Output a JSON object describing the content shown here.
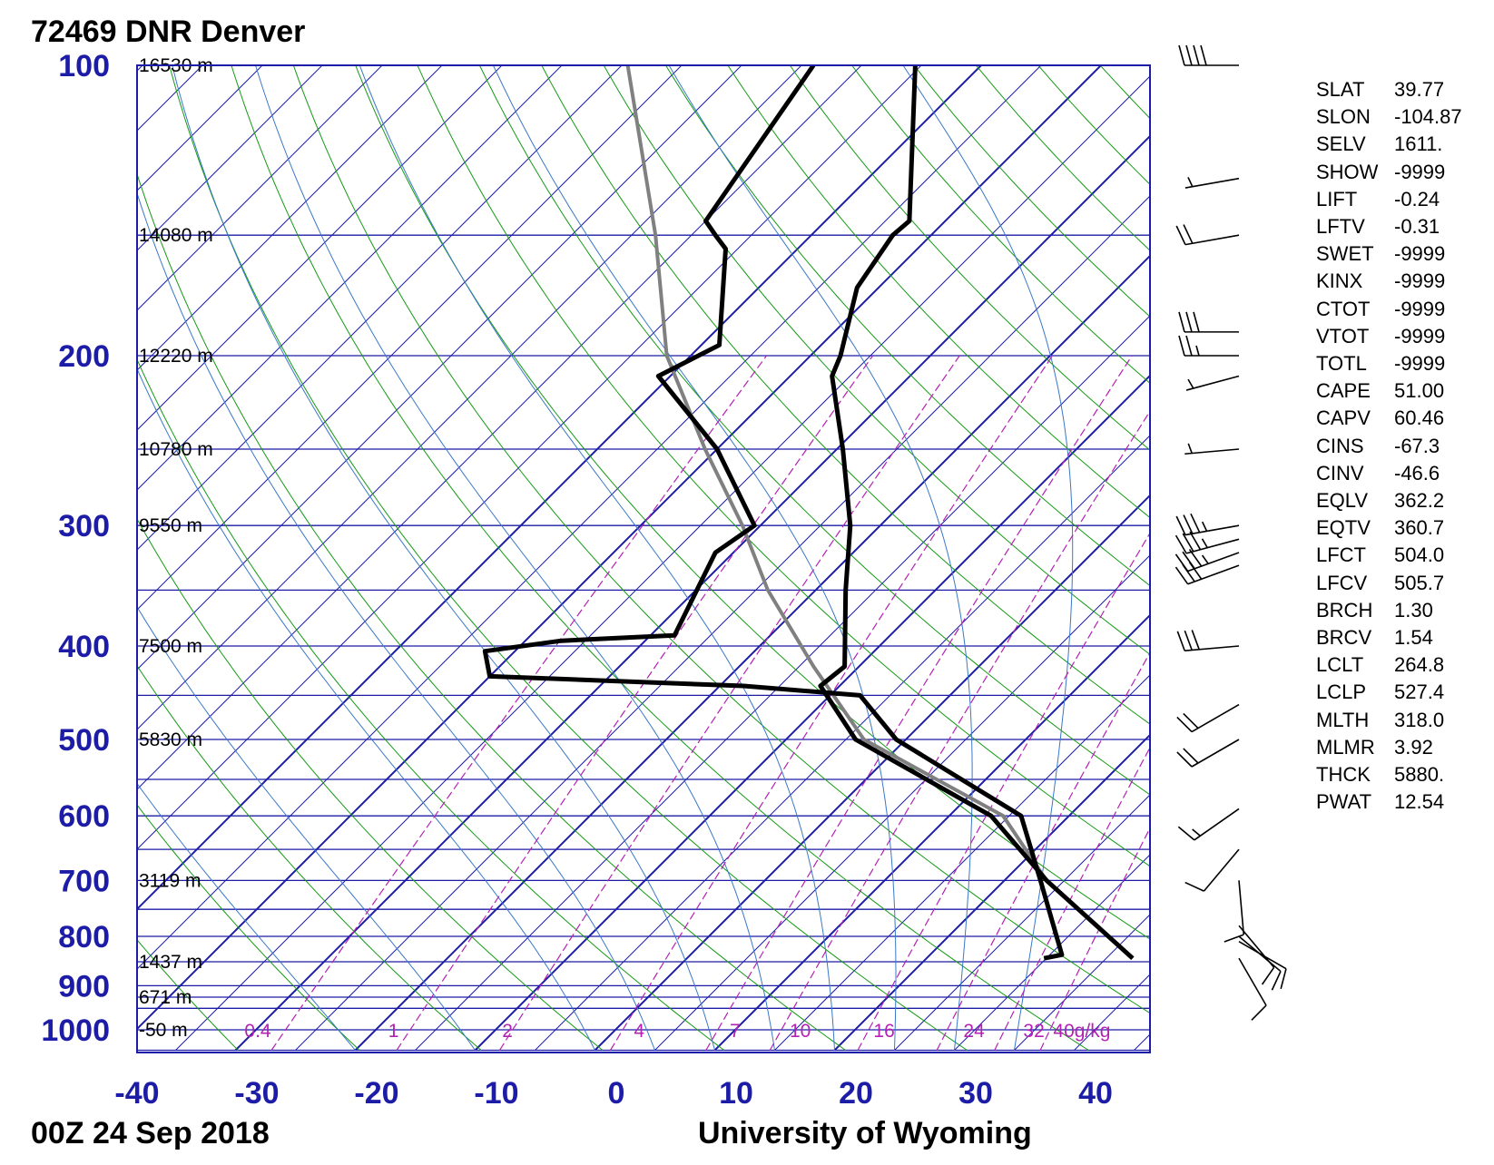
{
  "header": {
    "station_title": "72469 DNR Denver",
    "date_label": "00Z 24 Sep 2018",
    "source_label": "University of Wyoming"
  },
  "chart_data": {
    "type": "skew-t log-p",
    "x_ticks": [
      "-40",
      "-30",
      "-20",
      "-10",
      "0",
      "10",
      "20",
      "30",
      "40"
    ],
    "y_ticks": [
      "100",
      "200",
      "300",
      "400",
      "500",
      "600",
      "700",
      "800",
      "900",
      "1000"
    ],
    "xlim": [
      -40,
      45
    ],
    "ylim": [
      1050,
      100
    ],
    "isobar_heights": [
      {
        "p": 100,
        "label": "16530 m"
      },
      {
        "p": 150,
        "label": "14080 m"
      },
      {
        "p": 200,
        "label": "12220 m"
      },
      {
        "p": 250,
        "label": "10780 m"
      },
      {
        "p": 300,
        "label": "9550 m"
      },
      {
        "p": 400,
        "label": "7500 m"
      },
      {
        "p": 500,
        "label": "5830 m"
      },
      {
        "p": 700,
        "label": "3119 m"
      },
      {
        "p": 850,
        "label": "1437 m"
      },
      {
        "p": 925,
        "label": "671 m"
      },
      {
        "p": 1000,
        "label": "-50 m"
      }
    ],
    "mixing_ratio_labels": [
      {
        "value": "0.4",
        "temp_1000": -30.5
      },
      {
        "value": "1",
        "temp_1000": -18.5
      },
      {
        "value": "2",
        "temp_1000": -9
      },
      {
        "value": "4",
        "temp_1000": 2
      },
      {
        "value": "7",
        "temp_1000": 10
      },
      {
        "value": "10",
        "temp_1000": 15
      },
      {
        "value": "16",
        "temp_1000": 22
      },
      {
        "value": "24",
        "temp_1000": 29.5
      },
      {
        "value": "32",
        "temp_1000": 34.5
      },
      {
        "value": "40g/kg",
        "temp_1000": 37
      }
    ],
    "temperature": [
      {
        "p": 843,
        "t": 37.2
      },
      {
        "p": 700,
        "t": 23.5
      },
      {
        "p": 600,
        "t": 13.5
      },
      {
        "p": 500,
        "t": -4.2
      },
      {
        "p": 440,
        "t": -11.6
      },
      {
        "p": 420,
        "t": -11.2
      },
      {
        "p": 350,
        "t": -17.5
      },
      {
        "p": 300,
        "t": -22.5
      },
      {
        "p": 250,
        "t": -29.5
      },
      {
        "p": 210,
        "t": -36.5
      },
      {
        "p": 200,
        "t": -37.5
      },
      {
        "p": 170,
        "t": -41.8
      },
      {
        "p": 150,
        "t": -43.2
      },
      {
        "p": 145,
        "t": -43.0
      },
      {
        "p": 100,
        "t": -55.5
      }
    ],
    "dewpoint": [
      {
        "p": 843,
        "t": 29.8
      },
      {
        "p": 836,
        "t": 31.0
      },
      {
        "p": 700,
        "t": 23.0
      },
      {
        "p": 600,
        "t": 16.0
      },
      {
        "p": 500,
        "t": -0.8
      },
      {
        "p": 450,
        "t": -7.5
      },
      {
        "p": 440,
        "t": -18.0
      },
      {
        "p": 430,
        "t": -40.0
      },
      {
        "p": 405,
        "t": -42.5
      },
      {
        "p": 395,
        "t": -37.0
      },
      {
        "p": 390,
        "t": -28.0
      },
      {
        "p": 320,
        "t": -31.5
      },
      {
        "p": 300,
        "t": -30.5
      },
      {
        "p": 250,
        "t": -40.0
      },
      {
        "p": 210,
        "t": -51.0
      },
      {
        "p": 195,
        "t": -48.5
      },
      {
        "p": 155,
        "t": -56.0
      },
      {
        "p": 150,
        "t": -58.0
      },
      {
        "p": 145,
        "t": -60.0
      },
      {
        "p": 100,
        "t": -64.0
      }
    ],
    "parcel": [
      {
        "p": 843,
        "t": 37.2
      },
      {
        "p": 700,
        "t": 23.5
      },
      {
        "p": 600,
        "t": 14.5
      },
      {
        "p": 500,
        "t": -3.5
      },
      {
        "p": 420,
        "t": -13.8
      },
      {
        "p": 350,
        "t": -24.0
      },
      {
        "p": 300,
        "t": -31.5
      },
      {
        "p": 250,
        "t": -41.0
      },
      {
        "p": 200,
        "t": -52.0
      },
      {
        "p": 150,
        "t": -63.0
      },
      {
        "p": 100,
        "t": -79.5
      }
    ],
    "wind_barbs": [
      {
        "p": 100,
        "dir": 270,
        "kt": 40
      },
      {
        "p": 131,
        "dir": 260,
        "kt": 5
      },
      {
        "p": 150,
        "dir": 260,
        "kt": 20
      },
      {
        "p": 189,
        "dir": 270,
        "kt": 30
      },
      {
        "p": 200,
        "dir": 270,
        "kt": 25
      },
      {
        "p": 210,
        "dir": 255,
        "kt": 5
      },
      {
        "p": 250,
        "dir": 265,
        "kt": 5
      },
      {
        "p": 300,
        "dir": 260,
        "kt": 35
      },
      {
        "p": 310,
        "dir": 255,
        "kt": 35
      },
      {
        "p": 320,
        "dir": 250,
        "kt": 35
      },
      {
        "p": 330,
        "dir": 250,
        "kt": 30
      },
      {
        "p": 400,
        "dir": 265,
        "kt": 30
      },
      {
        "p": 460,
        "dir": 240,
        "kt": 20
      },
      {
        "p": 500,
        "dir": 240,
        "kt": 20
      },
      {
        "p": 590,
        "dir": 235,
        "kt": 15
      },
      {
        "p": 650,
        "dir": 220,
        "kt": 10
      },
      {
        "p": 700,
        "dir": 175,
        "kt": 10
      },
      {
        "p": 780,
        "dir": 140,
        "kt": 10
      },
      {
        "p": 800,
        "dir": 130,
        "kt": 10
      },
      {
        "p": 810,
        "dir": 120,
        "kt": 10
      },
      {
        "p": 843,
        "dir": 150,
        "kt": 10
      }
    ],
    "colors": {
      "isotherm": "#1c1ca6",
      "isobar": "#1c1ca6",
      "dry_adiabat": "#159a15",
      "moist_adiabat": "#3a78c8",
      "mixing_ratio": "#b322b3",
      "profile": "#000000",
      "parcel": "#808080"
    }
  },
  "station_indices": [
    {
      "key": "SLAT",
      "value": "39.77"
    },
    {
      "key": "SLON",
      "value": "-104.87"
    },
    {
      "key": "SELV",
      "value": "1611."
    },
    {
      "key": "SHOW",
      "value": "-9999"
    },
    {
      "key": "LIFT",
      "value": "-0.24"
    },
    {
      "key": "LFTV",
      "value": "-0.31"
    },
    {
      "key": "SWET",
      "value": "-9999"
    },
    {
      "key": "KINX",
      "value": "-9999"
    },
    {
      "key": "CTOT",
      "value": "-9999"
    },
    {
      "key": "VTOT",
      "value": "-9999"
    },
    {
      "key": "TOTL",
      "value": "-9999"
    },
    {
      "key": "CAPE",
      "value": "51.00"
    },
    {
      "key": "CAPV",
      "value": "60.46"
    },
    {
      "key": "CINS",
      "value": "-67.3"
    },
    {
      "key": "CINV",
      "value": "-46.6"
    },
    {
      "key": "EQLV",
      "value": "362.2"
    },
    {
      "key": "EQTV",
      "value": "360.7"
    },
    {
      "key": "LFCT",
      "value": "504.0"
    },
    {
      "key": "LFCV",
      "value": "505.7"
    },
    {
      "key": "BRCH",
      "value": "1.30"
    },
    {
      "key": "BRCV",
      "value": "1.54"
    },
    {
      "key": "LCLT",
      "value": "264.8"
    },
    {
      "key": "LCLP",
      "value": "527.4"
    },
    {
      "key": "MLTH",
      "value": "318.0"
    },
    {
      "key": "MLMR",
      "value": "3.92"
    },
    {
      "key": "THCK",
      "value": "5880."
    },
    {
      "key": "PWAT",
      "value": "12.54"
    }
  ]
}
